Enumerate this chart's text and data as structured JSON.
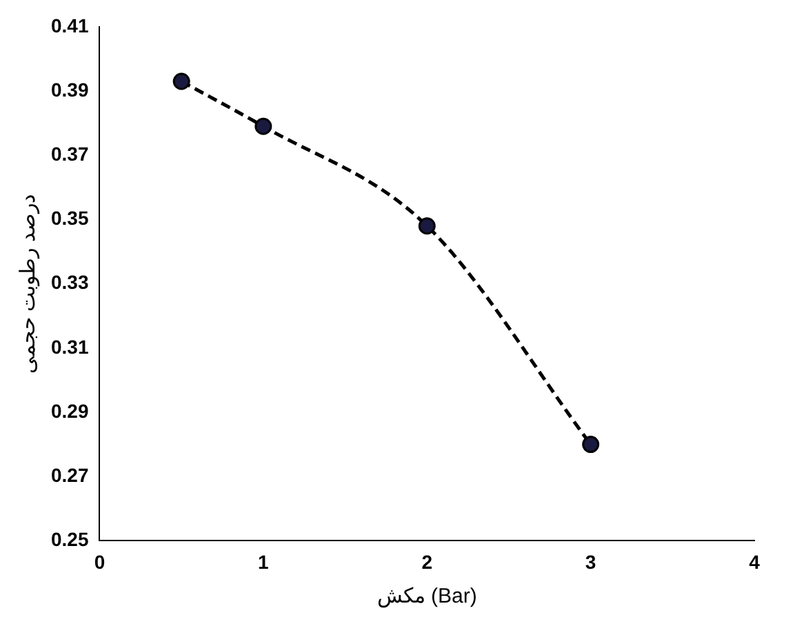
{
  "chart_data": {
    "type": "line",
    "xlabel": "مکش (Bar)",
    "ylabel": "درصد رطوبت حجمی",
    "x": [
      0.5,
      1,
      2,
      3
    ],
    "series": [
      {
        "color": "#000000",
        "values": [
          0.393,
          0.379,
          0.348,
          0.28
        ]
      }
    ],
    "xlim": [
      0,
      4
    ],
    "xticks": [
      0,
      1,
      2,
      3,
      4
    ],
    "ylim": [
      0.25,
      0.41
    ],
    "yticks": [
      0.25,
      0.27,
      0.29,
      0.31,
      0.33,
      0.35,
      0.37,
      0.39,
      0.41
    ],
    "grid": false,
    "legend": false,
    "marker": "circle",
    "line_style": "dashed"
  }
}
